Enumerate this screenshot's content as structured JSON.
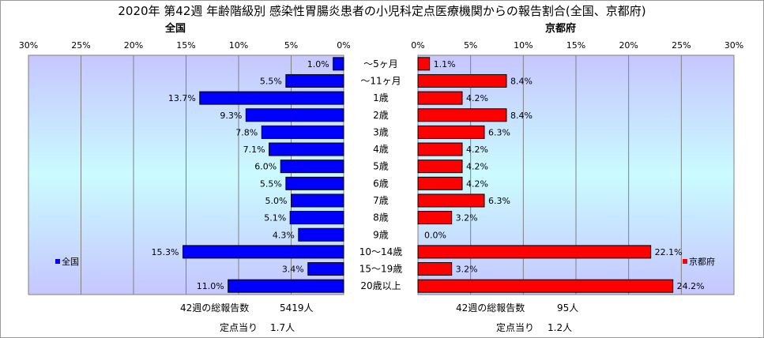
{
  "title": "2020年 第42週 年齢階級別 感染性胃腸炎患者の小児科定点医療機関からの報告割合(全国、京都府)",
  "chart_data": {
    "type": "bar",
    "orientation": "horizontal-butterfly",
    "categories": [
      "～5ヶ月",
      "～11ヶ月",
      "1歳",
      "2歳",
      "3歳",
      "4歳",
      "5歳",
      "6歳",
      "7歳",
      "8歳",
      "9歳",
      "10～14歳",
      "15～19歳",
      "20歳以上"
    ],
    "series": [
      {
        "name": "全国",
        "color": "#0000ff",
        "values": [
          1.0,
          5.5,
          13.7,
          9.3,
          7.8,
          7.1,
          6.0,
          5.5,
          5.0,
          5.1,
          4.3,
          15.3,
          3.4,
          11.0
        ]
      },
      {
        "name": "京都府",
        "color": "#ff0000",
        "values": [
          1.1,
          8.4,
          4.2,
          8.4,
          6.3,
          4.2,
          4.2,
          4.2,
          6.3,
          3.2,
          0.0,
          22.1,
          3.2,
          24.2
        ]
      }
    ],
    "xlim": [
      0,
      30
    ],
    "ticks": [
      "0%",
      "5%",
      "10%",
      "15%",
      "20%",
      "25%",
      "30%"
    ],
    "grid": true,
    "legend_placement": "bottom-inside"
  },
  "left_panel": {
    "heading": "全国",
    "total_label": "42週の総報告数",
    "total_value": "5419人",
    "per_label": "定点当り",
    "per_value": "1.7人"
  },
  "right_panel": {
    "heading": "京都府",
    "total_label": "42週の総報告数",
    "total_value": "95人",
    "per_label": "定点当り",
    "per_value": "1.2人"
  }
}
